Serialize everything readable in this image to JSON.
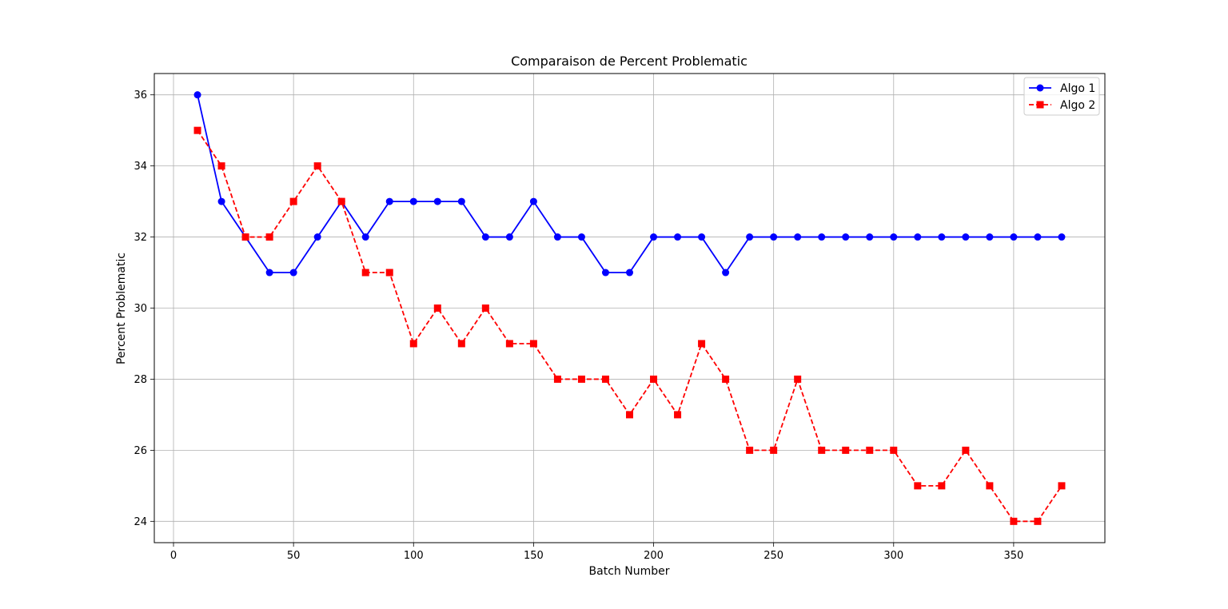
{
  "chart_data": {
    "type": "line",
    "title": "Comparaison de Percent Problematic",
    "xlabel": "Batch Number",
    "ylabel": "Percent Problematic",
    "xlim": [
      -8,
      388
    ],
    "ylim": [
      23.4,
      36.6
    ],
    "xticks": [
      0,
      50,
      100,
      150,
      200,
      250,
      300,
      350
    ],
    "yticks": [
      24,
      26,
      28,
      30,
      32,
      34,
      36
    ],
    "grid": true,
    "legend_position": "top-right",
    "x": [
      10,
      20,
      30,
      40,
      50,
      60,
      70,
      80,
      90,
      100,
      110,
      120,
      130,
      140,
      150,
      160,
      170,
      180,
      190,
      200,
      210,
      220,
      230,
      240,
      250,
      260,
      270,
      280,
      290,
      300,
      310,
      320,
      330,
      340,
      350,
      360,
      370
    ],
    "series": [
      {
        "name": "Algo 1",
        "color": "#0000ff",
        "marker": "circle",
        "line_style": "solid",
        "values": [
          36,
          33,
          32,
          31,
          31,
          32,
          33,
          32,
          33,
          33,
          33,
          33,
          32,
          32,
          33,
          32,
          32,
          31,
          31,
          32,
          32,
          32,
          31,
          32,
          32,
          32,
          32,
          32,
          32,
          32,
          32,
          32,
          32,
          32,
          32,
          32,
          32
        ]
      },
      {
        "name": "Algo 2",
        "color": "#ff0000",
        "marker": "square",
        "line_style": "dashed",
        "values": [
          35,
          34,
          32,
          32,
          33,
          34,
          33,
          31,
          31,
          29,
          30,
          29,
          30,
          29,
          29,
          28,
          28,
          28,
          27,
          28,
          27,
          29,
          28,
          26,
          26,
          28,
          26,
          26,
          26,
          26,
          25,
          25,
          26,
          25,
          24,
          24,
          25
        ]
      }
    ]
  }
}
